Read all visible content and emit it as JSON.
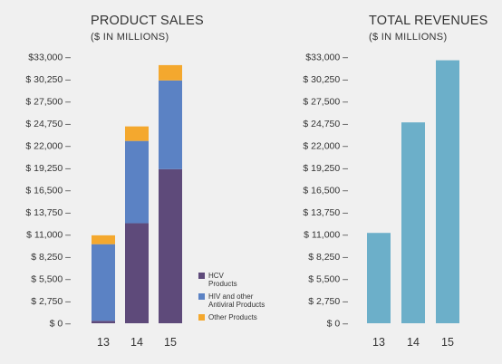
{
  "chart_data": [
    {
      "type": "bar",
      "stacked": true,
      "title": "PRODUCT SALES",
      "subtitle": "($ IN MILLIONS)",
      "categories": [
        "13",
        "14",
        "15"
      ],
      "ylim": [
        0,
        33000
      ],
      "ytick_values": [
        0,
        2750,
        5500,
        8250,
        11000,
        13750,
        16500,
        19250,
        22000,
        24750,
        27500,
        30250,
        33000
      ],
      "ytick_labels": [
        "$ 0 –",
        "$ 2,750 –",
        "$ 5,500 –",
        "$ 8,250 –",
        "$ 11,000 –",
        "$ 13,750 –",
        "$ 16,500 –",
        "$ 19,250 –",
        "$ 22,000 –",
        "$ 24,750 –",
        "$ 27,500 –",
        "$ 30,250 –",
        "$33,000 –"
      ],
      "series": [
        {
          "name": "HCV Products",
          "legend_lines": [
            "HCV",
            "Products"
          ],
          "color": "#5e4a7a",
          "values": [
            300,
            12400,
            19100
          ]
        },
        {
          "name": "HIV and other Antiviral Products",
          "legend_lines": [
            "HIV and other",
            "Antiviral Products"
          ],
          "color": "#5b82c4",
          "values": [
            9500,
            10200,
            11000
          ]
        },
        {
          "name": "Other Products",
          "legend_lines": [
            "Other Products"
          ],
          "color": "#f4a82e",
          "values": [
            1100,
            1800,
            1900
          ]
        }
      ],
      "legend_position": "bottom-right",
      "grid": false
    },
    {
      "type": "bar",
      "title": "TOTAL REVENUES",
      "subtitle": "($ IN MILLIONS)",
      "categories": [
        "13",
        "14",
        "15"
      ],
      "values": [
        11200,
        24900,
        32600
      ],
      "color": "#6cafc9",
      "ylim": [
        0,
        33000
      ],
      "ytick_values": [
        0,
        2750,
        5500,
        8250,
        11000,
        13750,
        16500,
        19250,
        22000,
        24750,
        27500,
        30250,
        33000
      ],
      "ytick_labels": [
        "$ 0 –",
        "$ 2,750 –",
        "$ 5,500 –",
        "$ 8,250 –",
        "$ 11,000 –",
        "$ 13,750 –",
        "$ 16,500 –",
        "$ 19,250 –",
        "$ 22,000 –",
        "$ 24,750 –",
        "$ 27,500 –",
        "$ 30,250 –",
        "$33,000 –"
      ],
      "grid": false
    }
  ]
}
